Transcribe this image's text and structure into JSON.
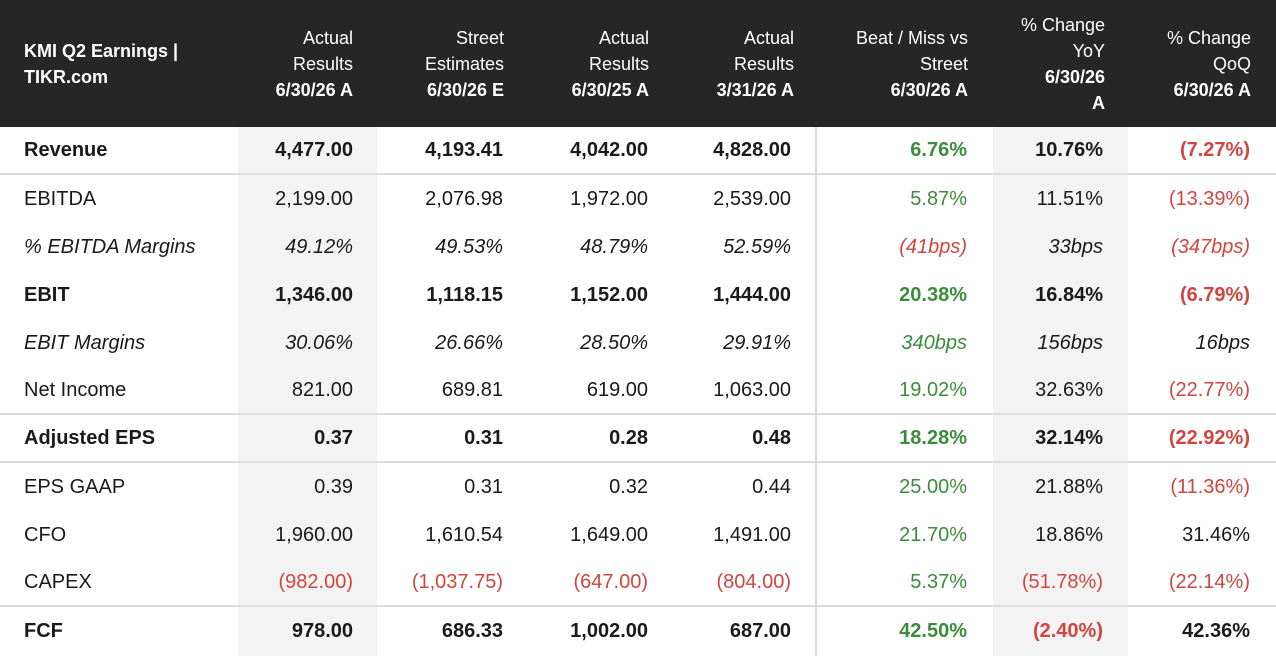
{
  "header": {
    "title_line1": "KMI Q2 Earnings |",
    "title_line2": "TIKR.com",
    "columns": [
      {
        "l1": "Actual",
        "l2": "Results",
        "d": "6/30/26 A"
      },
      {
        "l1": "Street",
        "l2": "Estimates",
        "d": "6/30/26 E"
      },
      {
        "l1": "Actual",
        "l2": "Results",
        "d": "6/30/25 A"
      },
      {
        "l1": "Actual",
        "l2": "Results",
        "d": "3/31/26 A"
      },
      {
        "l1": "Beat / Miss vs",
        "l2": "Street",
        "d": "6/30/26 A"
      },
      {
        "l1": "% Change",
        "l2": "YoY",
        "d": "6/30/26",
        "d2": "A"
      },
      {
        "l1": "% Change",
        "l2": "QoQ",
        "d": "6/30/26 A"
      }
    ]
  },
  "colors": {
    "positive": "#3d8b3d",
    "negative": "#d0453f",
    "header_bg": "#262626",
    "shade": "#f3f3f3"
  },
  "rows": [
    {
      "label": "Revenue",
      "values": [
        "4,477.00",
        "4,193.41",
        "4,042.00",
        "4,828.00",
        "6.76%",
        "10.76%",
        "(7.27%)"
      ]
    },
    {
      "label": "EBITDA",
      "values": [
        "2,199.00",
        "2,076.98",
        "1,972.00",
        "2,539.00",
        "5.87%",
        "11.51%",
        "(13.39%)"
      ]
    },
    {
      "label": "% EBITDA Margins",
      "values": [
        "49.12%",
        "49.53%",
        "48.79%",
        "52.59%",
        "(41bps)",
        "33bps",
        "(347bps)"
      ]
    },
    {
      "label": "EBIT",
      "values": [
        "1,346.00",
        "1,118.15",
        "1,152.00",
        "1,444.00",
        "20.38%",
        "16.84%",
        "(6.79%)"
      ]
    },
    {
      "label": "EBIT Margins",
      "values": [
        "30.06%",
        "26.66%",
        "28.50%",
        "29.91%",
        "340bps",
        "156bps",
        "16bps"
      ]
    },
    {
      "label": "Net Income",
      "values": [
        "821.00",
        "689.81",
        "619.00",
        "1,063.00",
        "19.02%",
        "32.63%",
        "(22.77%)"
      ]
    },
    {
      "label": "Adjusted EPS",
      "values": [
        "0.37",
        "0.31",
        "0.28",
        "0.48",
        "18.28%",
        "32.14%",
        "(22.92%)"
      ]
    },
    {
      "label": "EPS GAAP",
      "values": [
        "0.39",
        "0.31",
        "0.32",
        "0.44",
        "25.00%",
        "21.88%",
        "(11.36%)"
      ]
    },
    {
      "label": "CFO",
      "values": [
        "1,960.00",
        "1,610.54",
        "1,649.00",
        "1,491.00",
        "21.70%",
        "18.86%",
        "31.46%"
      ]
    },
    {
      "label": "CAPEX",
      "values": [
        "(982.00)",
        "(1,037.75)",
        "(647.00)",
        "(804.00)",
        "5.37%",
        "(51.78%)",
        "(22.14%)"
      ]
    },
    {
      "label": "FCF",
      "values": [
        "978.00",
        "686.33",
        "1,002.00",
        "687.00",
        "42.50%",
        "(2.40%)",
        "42.36%"
      ]
    }
  ]
}
